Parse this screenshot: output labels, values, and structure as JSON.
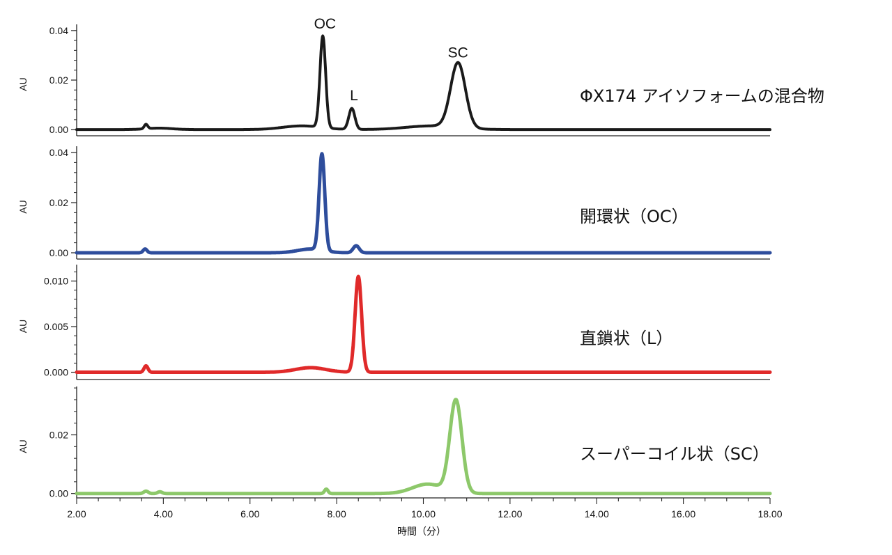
{
  "chart_data": {
    "type": "line",
    "xlabel": "時間（分）",
    "xlim": [
      2.0,
      18.0
    ],
    "x_ticks": [
      "2.00",
      "4.00",
      "6.00",
      "8.00",
      "10.00",
      "12.00",
      "14.00",
      "16.00",
      "18.00"
    ],
    "grid": false,
    "panels": [
      {
        "name": "ΦX174 アイソフォームの混合物",
        "ylabel": "AU",
        "color": "#1a1a1a",
        "ylim": [
          -0.0025,
          0.0425
        ],
        "y_ticks": [
          "0.00",
          "0.02",
          "0.04"
        ],
        "y_tick_values": [
          0.0,
          0.02,
          0.04
        ],
        "annotations": [
          {
            "text": "OC",
            "x": 7.73,
            "y": 0.0425
          },
          {
            "text": "L",
            "x": 8.4,
            "y": 0.0135
          },
          {
            "text": "SC",
            "x": 10.8,
            "y": 0.0308
          }
        ],
        "peaks": [
          {
            "x": 3.6,
            "h": 0.0018,
            "w": 0.04
          },
          {
            "x": 7.68,
            "h": 0.037,
            "w": 0.065
          },
          {
            "x": 8.35,
            "h": 0.0085,
            "w": 0.07
          },
          {
            "x": 10.8,
            "h": 0.0262,
            "w": 0.17
          }
        ],
        "humps": [
          {
            "x": 7.2,
            "h": 0.0015,
            "w": 0.45
          },
          {
            "x": 10.2,
            "h": 0.0015,
            "w": 0.6
          },
          {
            "x": 3.9,
            "h": 0.0006,
            "w": 0.3
          }
        ],
        "points": [
          [
            2.0,
            0.0
          ],
          [
            3.5,
            0.0003
          ],
          [
            3.6,
            0.0018
          ],
          [
            3.7,
            0.0005
          ],
          [
            4.5,
            0.0004
          ],
          [
            6.0,
            0.0003
          ],
          [
            7.0,
            0.0012
          ],
          [
            7.5,
            0.0025
          ],
          [
            7.62,
            0.02
          ],
          [
            7.68,
            0.0383
          ],
          [
            7.75,
            0.02
          ],
          [
            7.9,
            0.0015
          ],
          [
            8.2,
            0.0015
          ],
          [
            8.35,
            0.0087
          ],
          [
            8.5,
            0.0015
          ],
          [
            9.0,
            0.0004
          ],
          [
            10.0,
            0.0025
          ],
          [
            10.5,
            0.0085
          ],
          [
            10.8,
            0.0265
          ],
          [
            11.1,
            0.0085
          ],
          [
            11.3,
            0.0006
          ],
          [
            12.0,
            0.0003
          ],
          [
            17.0,
            0.0002
          ],
          [
            18.0,
            0.0
          ]
        ]
      },
      {
        "name": "開環状（OC）",
        "ylabel": "AU",
        "color": "#2e4d9c",
        "ylim": [
          -0.0025,
          0.0425
        ],
        "y_ticks": [
          "0.00",
          "0.02",
          "0.04"
        ],
        "y_tick_values": [
          0.0,
          0.02,
          0.04
        ],
        "peaks": [
          {
            "x": 3.58,
            "h": 0.0015,
            "w": 0.045
          },
          {
            "x": 7.66,
            "h": 0.0385,
            "w": 0.065
          },
          {
            "x": 8.45,
            "h": 0.0028,
            "w": 0.07
          }
        ],
        "humps": [
          {
            "x": 7.4,
            "h": 0.0015,
            "w": 0.3
          }
        ],
        "points": [
          [
            2.0,
            0.0
          ],
          [
            3.58,
            0.0015
          ],
          [
            4.0,
            0.0001
          ],
          [
            7.0,
            0.0006
          ],
          [
            7.5,
            0.002
          ],
          [
            7.66,
            0.0395
          ],
          [
            7.8,
            0.01
          ],
          [
            8.0,
            0.001
          ],
          [
            8.45,
            0.0028
          ],
          [
            8.7,
            0.0003
          ],
          [
            18.0,
            0.0
          ]
        ]
      },
      {
        "name": "直鎖状（L）",
        "ylabel": "AU",
        "color": "#e02a2a",
        "ylim": [
          -0.0008,
          0.0118
        ],
        "y_ticks": [
          "0.000",
          "0.005",
          "0.010"
        ],
        "y_tick_values": [
          0.0,
          0.005,
          0.01
        ],
        "peaks": [
          {
            "x": 3.6,
            "h": 0.0007,
            "w": 0.045
          },
          {
            "x": 8.5,
            "h": 0.0105,
            "w": 0.075
          }
        ],
        "humps": [
          {
            "x": 7.4,
            "h": 0.0005,
            "w": 0.35
          }
        ],
        "points": [
          [
            2.0,
            0.0
          ],
          [
            3.6,
            0.0007
          ],
          [
            4.0,
            0.0
          ],
          [
            7.0,
            0.0004
          ],
          [
            7.4,
            0.0005
          ],
          [
            8.2,
            0.0008
          ],
          [
            8.5,
            0.0108
          ],
          [
            8.8,
            0.0003
          ],
          [
            9.0,
            0.0
          ],
          [
            18.0,
            0.0
          ]
        ]
      },
      {
        "name": "スーパーコイル状（SC）",
        "ylabel": "AU",
        "color": "#8dc86a",
        "ylim": [
          -0.0015,
          0.0365
        ],
        "y_ticks": [
          "0.00",
          "0.02"
        ],
        "y_tick_values": [
          0.0,
          0.02
        ],
        "peaks": [
          {
            "x": 3.6,
            "h": 0.0008,
            "w": 0.05
          },
          {
            "x": 3.92,
            "h": 0.0006,
            "w": 0.05
          },
          {
            "x": 7.76,
            "h": 0.0015,
            "w": 0.04
          },
          {
            "x": 10.75,
            "h": 0.0315,
            "w": 0.14
          }
        ],
        "humps": [
          {
            "x": 10.1,
            "h": 0.0032,
            "w": 0.35
          }
        ],
        "points": [
          [
            2.0,
            0.0
          ],
          [
            3.6,
            0.0008
          ],
          [
            3.92,
            0.0006
          ],
          [
            4.2,
            0.0001
          ],
          [
            7.76,
            0.0015
          ],
          [
            8.0,
            0.0002
          ],
          [
            9.5,
            0.0006
          ],
          [
            10.3,
            0.0045
          ],
          [
            10.75,
            0.0355
          ],
          [
            11.1,
            0.003
          ],
          [
            11.3,
            0.0002
          ],
          [
            18.0,
            0.0
          ]
        ]
      }
    ]
  }
}
